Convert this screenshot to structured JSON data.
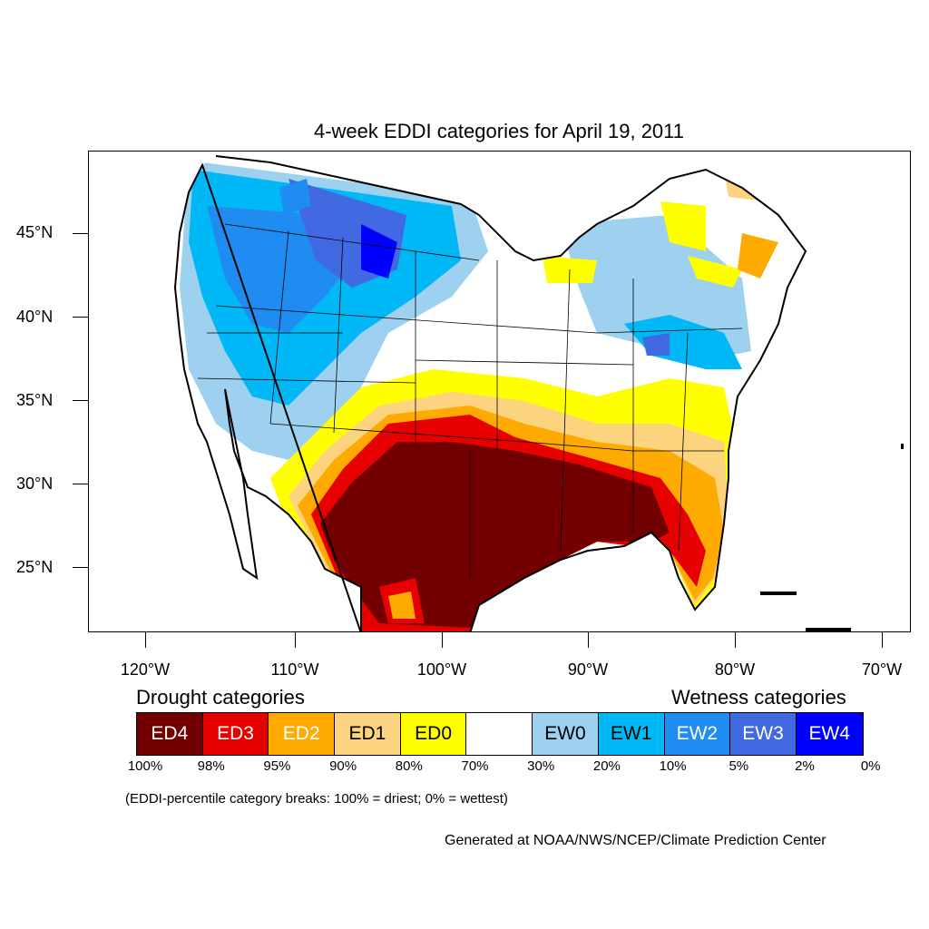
{
  "title": "4-week EDDI categories for April 19, 2011",
  "lat_labels": [
    "45°N",
    "40°N",
    "35°N",
    "30°N",
    "25°N"
  ],
  "lon_labels": [
    "120°W",
    "110°W",
    "100°W",
    "90°W",
    "80°W",
    "70°W"
  ],
  "legend": {
    "drought_heading": "Drought categories",
    "wetness_heading": "Wetness categories",
    "categories": [
      {
        "label": "ED4",
        "color": "#730000",
        "text_color": "#ffffff"
      },
      {
        "label": "ED3",
        "color": "#e60000",
        "text_color": "#ffffff"
      },
      {
        "label": "ED2",
        "color": "#ffaa00",
        "text_color": "#ffffff"
      },
      {
        "label": "ED1",
        "color": "#fcd37f",
        "text_color": "#000000"
      },
      {
        "label": "ED0",
        "color": "#ffff00",
        "text_color": "#000000"
      },
      {
        "label": "",
        "color": "#ffffff",
        "text_color": "#000000"
      },
      {
        "label": "EW0",
        "color": "#9dd1ef",
        "text_color": "#000000"
      },
      {
        "label": "EW1",
        "color": "#00b8f5",
        "text_color": "#000000"
      },
      {
        "label": "EW2",
        "color": "#1e8cf0",
        "text_color": "#ffffff"
      },
      {
        "label": "EW3",
        "color": "#4169e1",
        "text_color": "#ffffff"
      },
      {
        "label": "EW4",
        "color": "#0000ff",
        "text_color": "#ffffff"
      }
    ],
    "breaks": [
      "100%",
      "98%",
      "95%",
      "90%",
      "80%",
      "70%",
      "30%",
      "20%",
      "10%",
      "5%",
      "2%",
      "0%"
    ]
  },
  "note": "(EDDI-percentile category breaks: 100% = driest; 0% = wettest)",
  "credit": "Generated at NOAA/NWS/NCEP/Climate Prediction Center"
}
